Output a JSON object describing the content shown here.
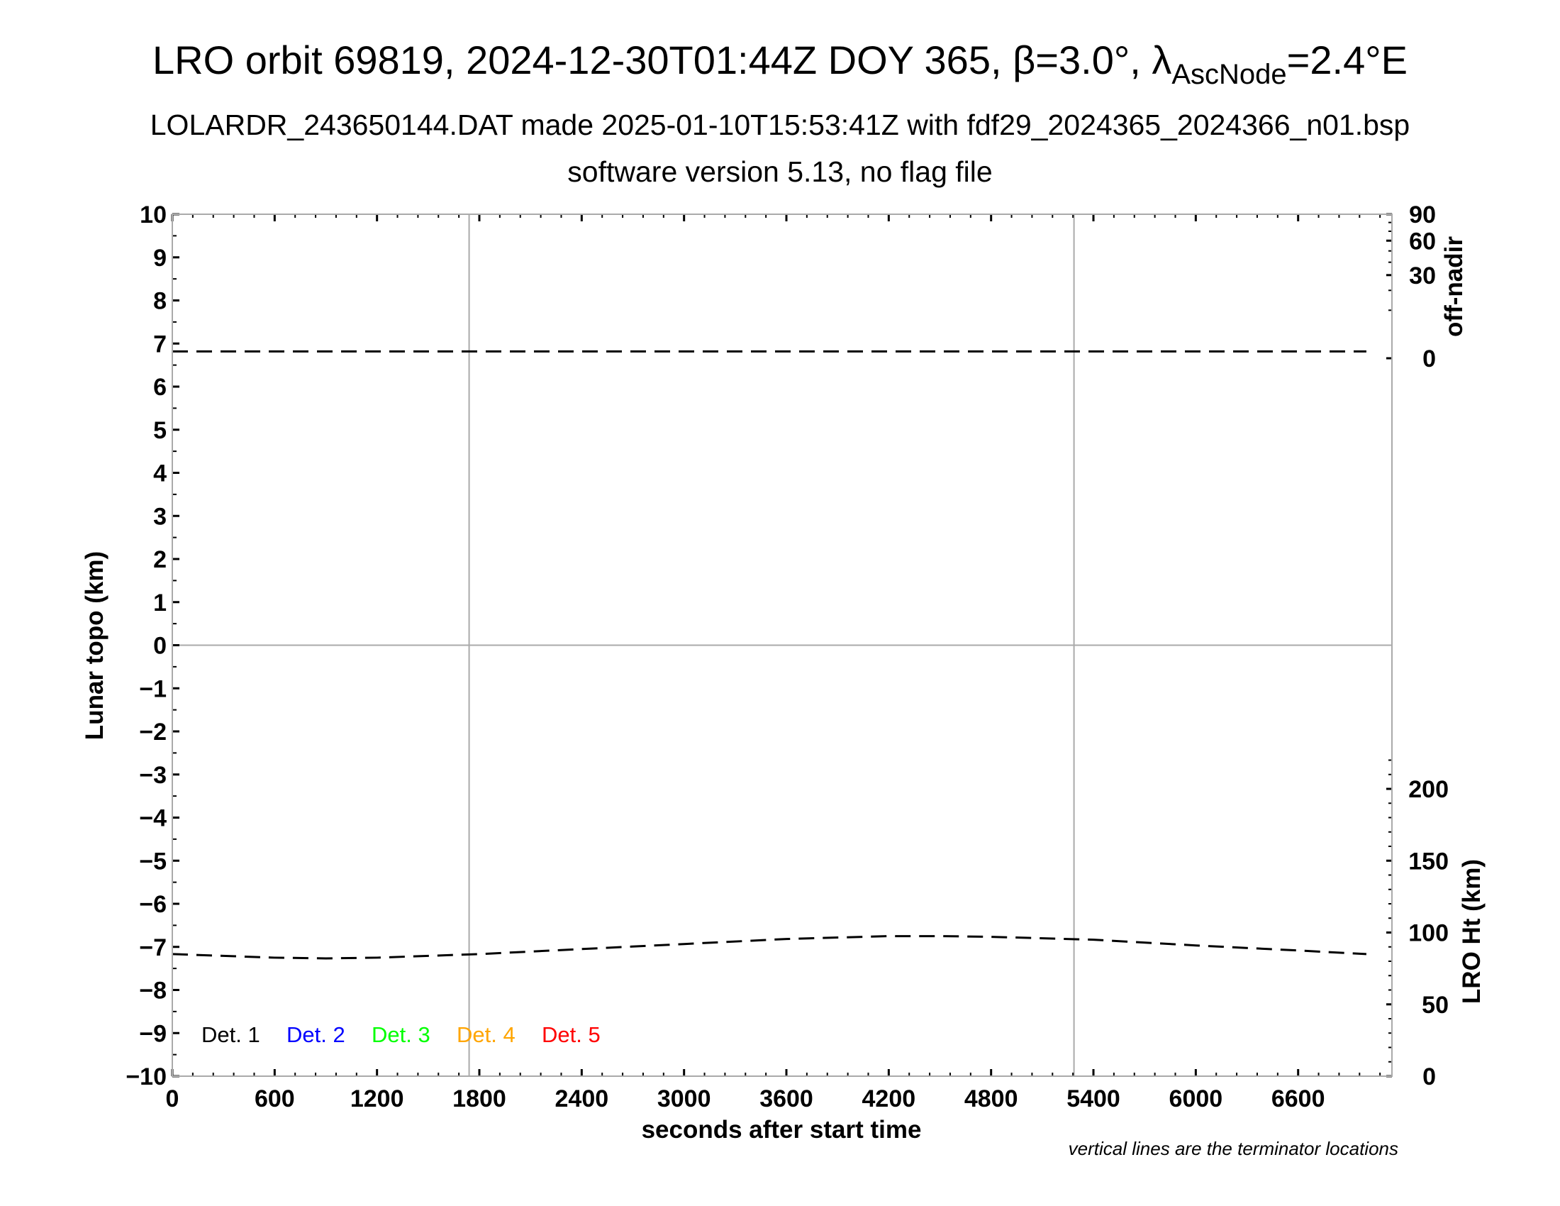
{
  "chart_data": {
    "type": "line",
    "title": "LRO orbit 69819, 2024-12-30T01:44Z DOY 365, β=3.0°, λ",
    "title_sub": "AscNode",
    "title_end": "=2.4°E",
    "subtitle": "LOLARDR_243650144.DAT made 2025-01-10T15:53:41Z with fdf29_2024365_2024366_n01.bsp",
    "subtitle2": "software version 5.13, no flag file",
    "xlabel": "seconds after start time",
    "ylabel": "Lunar topo (km)",
    "y2label_top": "off-nadir",
    "y2label_bottom": "LRO Ht (km)",
    "note": "vertical lines are the terminator locations",
    "xlim": [
      0,
      7150
    ],
    "ylim": [
      -10,
      10
    ],
    "xticks": [
      "0",
      "600",
      "1200",
      "1800",
      "2400",
      "3000",
      "3600",
      "4200",
      "4800",
      "5400",
      "6000",
      "6600"
    ],
    "yticks": [
      "10",
      "9",
      "8",
      "7",
      "6",
      "5",
      "4",
      "3",
      "2",
      "1",
      "0",
      "−1",
      "−2",
      "−3",
      "−4",
      "−5",
      "−6",
      "−7",
      "−8",
      "−9",
      "−10"
    ],
    "offnadir_ticks": [
      "90",
      "60",
      "30",
      "0"
    ],
    "offnadir_range": [
      0,
      90
    ],
    "height_ticks": [
      "200",
      "150",
      "100",
      "50",
      "0"
    ],
    "height_range": [
      0,
      300
    ],
    "terminators": [
      1740,
      5286
    ],
    "legend": [
      {
        "label": "Det. 1",
        "color": "#000000"
      },
      {
        "label": "Det. 2",
        "color": "#0000ff"
      },
      {
        "label": "Det. 3",
        "color": "#00ff00"
      },
      {
        "label": "Det. 4",
        "color": "#ffa500"
      },
      {
        "label": "Det. 5",
        "color": "#ff0000"
      }
    ],
    "series": [
      {
        "name": "off-nadir angle (deg)",
        "x": [
          0,
          1800,
          3600,
          5400,
          7000
        ],
        "values": [
          0.2,
          0.2,
          0.2,
          0.2,
          0.2
        ]
      },
      {
        "name": "LRO height (km)",
        "x": [
          0,
          600,
          900,
          1200,
          1800,
          2400,
          3000,
          3600,
          4200,
          4500,
          4800,
          5400,
          6000,
          6600,
          7000
        ],
        "values": [
          85,
          82.5,
          82,
          82.5,
          85,
          88.5,
          92,
          95.5,
          97.5,
          97.5,
          97,
          95,
          91,
          87.5,
          85
        ]
      }
    ]
  }
}
